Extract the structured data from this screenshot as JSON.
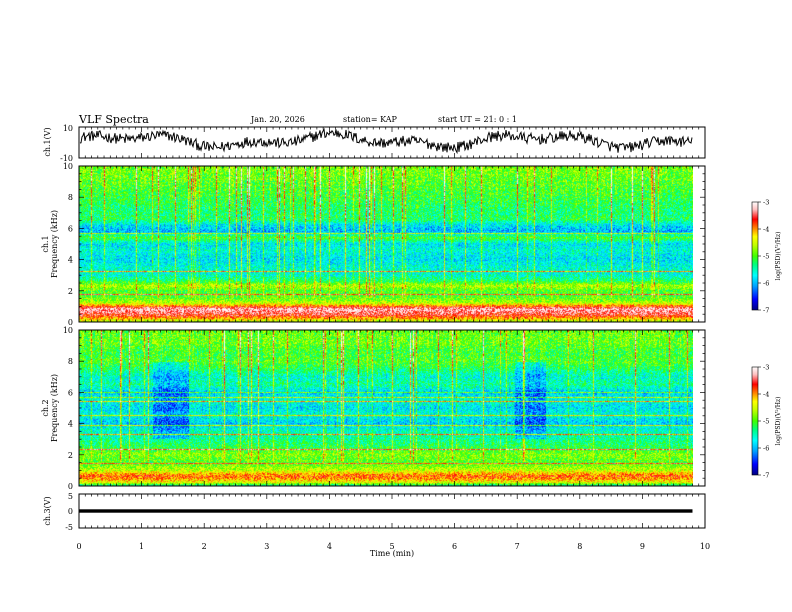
{
  "header": {
    "title": "VLF Spectra",
    "date": "Jan. 20, 2026",
    "station": "station= KAP",
    "start_ut": "start  UT =   21: 0  : 1"
  },
  "axes": {
    "ch1_label": "ch.1(V)",
    "ch1_spec_label_line1": "ch.1",
    "ch1_spec_label_line2": "Frequency (kHz)",
    "ch2_spec_label_line1": "ch.2",
    "ch2_spec_label_line2": "Frequency (kHz)",
    "ch3_label": "ch.3(V)",
    "xlabel": "Time  (min)",
    "colorbar_label": "log(PSD)(V²/Hz)"
  },
  "chart_data": [
    {
      "type": "line",
      "name": "ch1-waveform",
      "ylabel": "ch.1(V)",
      "ylim": [
        -10,
        10
      ],
      "yticks": [
        "10",
        "-10"
      ],
      "xlim": [
        0,
        10
      ],
      "x_cover": [
        0,
        9.8
      ],
      "description_values": {
        "typical_range": [
          -5,
          7
        ]
      }
    },
    {
      "type": "heatmap",
      "name": "ch1-spectrogram",
      "ylabel": "Frequency (kHz)",
      "ylim": [
        0,
        10
      ],
      "yticks": [
        "0",
        "2",
        "4",
        "6",
        "8",
        "10"
      ],
      "xlim": [
        0,
        10
      ],
      "x_cover": [
        0,
        9.8
      ],
      "band_levels_logpsd": [
        [
          0.0,
          -4.6
        ],
        [
          0.4,
          -3.6
        ],
        [
          0.8,
          -3.2
        ],
        [
          1.2,
          -4.6
        ],
        [
          1.6,
          -5.0
        ],
        [
          2.0,
          -5.0
        ],
        [
          2.3,
          -4.6
        ],
        [
          2.6,
          -5.2
        ],
        [
          3.0,
          -5.6
        ],
        [
          3.5,
          -5.6
        ],
        [
          4.0,
          -5.8
        ],
        [
          4.6,
          -5.6
        ],
        [
          5.0,
          -5.8
        ],
        [
          5.4,
          -5.0
        ],
        [
          5.8,
          -6.0
        ],
        [
          6.2,
          -5.8
        ],
        [
          6.6,
          -5.2
        ],
        [
          7.0,
          -5.3
        ],
        [
          7.5,
          -5.2
        ],
        [
          8.0,
          -5.1
        ],
        [
          8.6,
          -5.0
        ],
        [
          9.2,
          -4.9
        ],
        [
          10.0,
          -4.8
        ]
      ],
      "colorbar_range": [
        -7,
        -3
      ]
    },
    {
      "type": "heatmap",
      "name": "ch2-spectrogram",
      "ylabel": "Frequency (kHz)",
      "ylim": [
        0,
        10
      ],
      "yticks": [
        "0",
        "2",
        "4",
        "6",
        "8",
        "10"
      ],
      "xlim": [
        0,
        10
      ],
      "x_cover": [
        0,
        9.8
      ],
      "band_levels_logpsd": [
        [
          0.0,
          -5.4
        ],
        [
          0.2,
          -4.4
        ],
        [
          0.6,
          -3.8
        ],
        [
          1.0,
          -4.6
        ],
        [
          1.5,
          -5.0
        ],
        [
          2.0,
          -4.8
        ],
        [
          2.5,
          -5.2
        ],
        [
          3.0,
          -5.4
        ],
        [
          3.6,
          -5.6
        ],
        [
          4.0,
          -5.9
        ],
        [
          4.6,
          -5.6
        ],
        [
          5.0,
          -5.8
        ],
        [
          5.5,
          -5.6
        ],
        [
          6.0,
          -5.9
        ],
        [
          6.5,
          -5.4
        ],
        [
          7.0,
          -5.6
        ],
        [
          7.6,
          -5.2
        ],
        [
          8.0,
          -5.0
        ],
        [
          8.6,
          -5.1
        ],
        [
          9.2,
          -4.9
        ],
        [
          10.0,
          -4.9
        ]
      ],
      "quiet_patches_min": [
        [
          1.2,
          1.8
        ],
        [
          7.1,
          7.6
        ]
      ],
      "colorbar_range": [
        -7,
        -3
      ]
    },
    {
      "type": "line",
      "name": "ch3-waveform",
      "ylabel": "ch.3(V)",
      "ylim": [
        -5,
        5
      ],
      "yticks": [
        "5",
        "0",
        "-5"
      ],
      "xlim": [
        0,
        10
      ],
      "x_cover": [
        0,
        9.8
      ],
      "band_range": [
        -0.5,
        0.5
      ]
    }
  ],
  "x_axis": {
    "range": [
      0,
      10
    ],
    "ticks": [
      "0",
      "1",
      "2",
      "3",
      "4",
      "5",
      "6",
      "7",
      "8",
      "9",
      "10"
    ]
  },
  "colorbars": [
    {
      "name": "ch1-colorbar",
      "min": -7,
      "max": -3,
      "ticks": [
        "-3",
        "-4",
        "-5",
        "-6",
        "-7"
      ]
    },
    {
      "name": "ch2-colorbar",
      "min": -7,
      "max": -3,
      "ticks": [
        "-3",
        "-4",
        "-5",
        "-6",
        "-7"
      ]
    }
  ],
  "colors": {
    "colormap": [
      "#000080",
      "#0000ff",
      "#00a0ff",
      "#00ffff",
      "#00ff80",
      "#40ff00",
      "#c0ff00",
      "#ffff00",
      "#ff8000",
      "#ff0000",
      "#ffc0c0",
      "#ffffff"
    ]
  }
}
